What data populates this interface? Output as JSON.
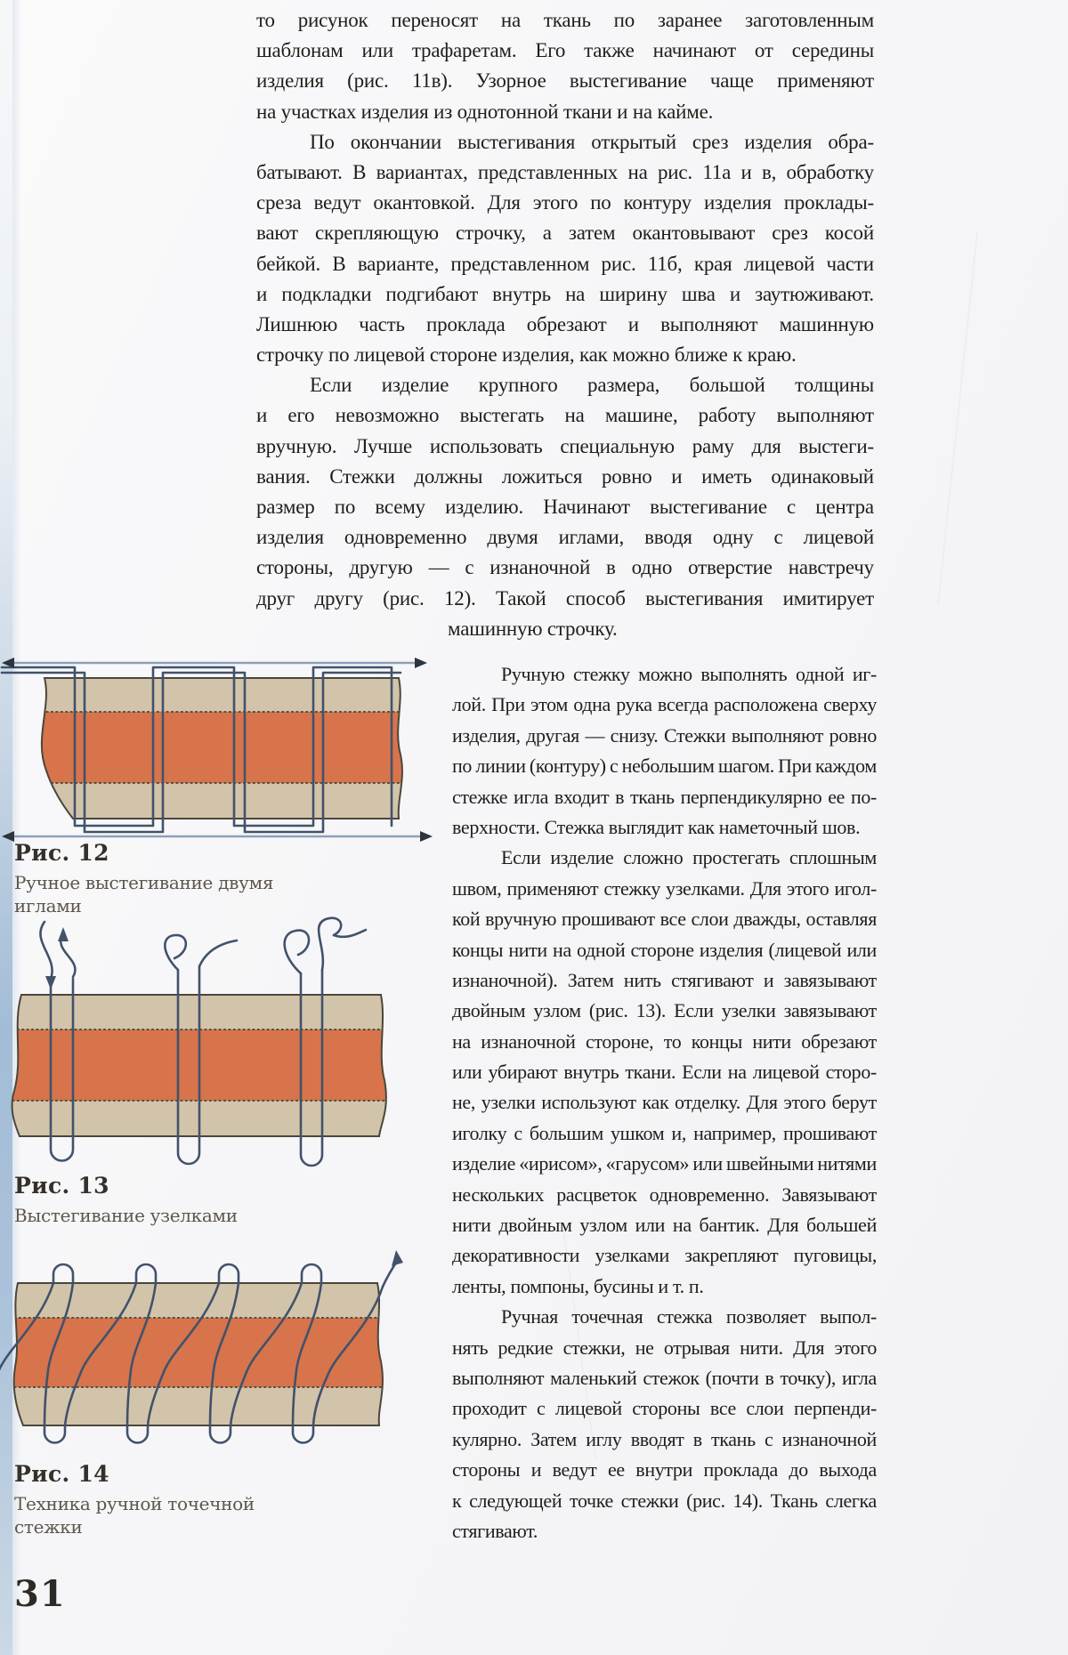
{
  "page": {
    "number": "31"
  },
  "colors": {
    "fabric_orange": "#d7744b",
    "fabric_tan": "#d2c4aa",
    "thread_line": "#42526b",
    "fabric_edge": "#4b463b",
    "arrow_line": "#8ba1ba",
    "arrow_head": "#2c3440",
    "text": "#211e1b",
    "caption_label": "#35302a",
    "caption_text": "#5c564d"
  },
  "figures": [
    {
      "label": "Рис. 12",
      "caption": "Ручное выстегивание двумя иглами"
    },
    {
      "label": "Рис. 13",
      "caption": "Выстегивание узелками"
    },
    {
      "label": "Рис. 14",
      "caption": "Техника ручной точечной стежки"
    }
  ],
  "text": {
    "column_top": {
      "lines": [
        {
          "t": "то рисунок переносят на ткань по заранее заготовленным",
          "j": 1
        },
        {
          "t": "шаблонам или трафаретам. Его также начинают от середины",
          "j": 1
        },
        {
          "t": "изделия (рис. 11в). Узорное выстегивание чаще применяют",
          "j": 1
        },
        {
          "t": "на участках изделия из однотонной ткани и на кайме.",
          "j": 0
        },
        {
          "t": "По окончании выстегивания открытый срез изделия обра-",
          "j": 1,
          "i": 60
        },
        {
          "t": "батывают. В вариантах, представленных на рис. 11а и в, обработку",
          "j": 1
        },
        {
          "t": "среза ведут окантовкой. Для этого по контуру изделия проклады-",
          "j": 1
        },
        {
          "t": "вают скрепляющую строчку, а затем окантовывают срез косой",
          "j": 1
        },
        {
          "t": "бейкой. В варианте, представленном рис. 11б, края лицевой части",
          "j": 1
        },
        {
          "t": "и подкладки подгибают внутрь на ширину шва и заутюживают.",
          "j": 1
        },
        {
          "t": "Лишнюю часть проклада обрезают и выполняют машинную",
          "j": 1
        },
        {
          "t": "строчку по лицевой стороне изделия, как можно ближе к краю.",
          "j": 0
        },
        {
          "t": "Если изделие крупного размера, большой толщины",
          "j": 1,
          "i": 60
        },
        {
          "t": "и его невозможно выстегать на машине, работу выполняют",
          "j": 1
        },
        {
          "t": "вручную. Лучше использовать специальную раму для выстеги-",
          "j": 1
        },
        {
          "t": "вания. Стежки должны ложиться ровно и иметь одинаковый",
          "j": 1
        },
        {
          "t": "размер по всему изделию. Начинают выстегивание с центра",
          "j": 1
        },
        {
          "t": "изделия одновременно двумя иглами, вводя одну с лицевой",
          "j": 1
        },
        {
          "t": "стороны, другую — с изнаночной в одно отверстие навстречу",
          "j": 1
        },
        {
          "t": "друг другу (рис. 12). Такой способ выстегивания имитирует",
          "j": 1
        },
        {
          "t": "машинную строчку.",
          "j": 0,
          "i": 215
        }
      ]
    },
    "column_right": {
      "lines": [
        {
          "t": "Ручную стежку можно выполнять одной иг-",
          "j": 1,
          "i": 55
        },
        {
          "t": "лой. При этом одна рука всегда расположена сверху",
          "j": 1
        },
        {
          "t": "изделия, другая — снизу. Стежки выполняют ровно",
          "j": 1
        },
        {
          "t": "по линии (контуру) с небольшим шагом. При каждом",
          "j": 1
        },
        {
          "t": "стежке игла входит в ткань перпендикулярно ее по-",
          "j": 1
        },
        {
          "t": "верхности. Стежка выглядит как наметочный шов.",
          "j": 0
        },
        {
          "t": "Если изделие сложно простегать сплошным",
          "j": 1,
          "i": 55
        },
        {
          "t": "швом, применяют стежку узелками. Для этого игол-",
          "j": 1
        },
        {
          "t": "кой вручную прошивают все слои дважды, оставляя",
          "j": 1
        },
        {
          "t": "концы нити на одной стороне изделия (лицевой или",
          "j": 1
        },
        {
          "t": "изнаночной). Затем нить стягивают и завязывают",
          "j": 1
        },
        {
          "t": "двойным узлом (рис. 13). Если узелки завязывают",
          "j": 1
        },
        {
          "t": "на изнаночной стороне, то концы нити обрезают",
          "j": 1
        },
        {
          "t": "или убирают внутрь ткани. Если на лицевой сторо-",
          "j": 1
        },
        {
          "t": "не, узелки используют как отделку. Для этого берут",
          "j": 1
        },
        {
          "t": "иголку с большим ушком и, например, прошивают",
          "j": 1
        },
        {
          "t": "изделие «ирисом», «гарусом» или швейными нитями",
          "j": 1
        },
        {
          "t": "нескольких расцветок одновременно. Завязывают",
          "j": 1
        },
        {
          "t": "нити двойным узлом или на бантик. Для большей",
          "j": 1
        },
        {
          "t": "декоративности узелками закрепляют пуговицы,",
          "j": 1
        },
        {
          "t": "ленты, помпоны, бусины и т. п.",
          "j": 0
        },
        {
          "t": "Ручная точечная стежка позволяет выпол-",
          "j": 1,
          "i": 55
        },
        {
          "t": "нять редкие стежки, не отрывая нити. Для этого",
          "j": 1
        },
        {
          "t": "выполняют маленький стежок (почти в точку), игла",
          "j": 1
        },
        {
          "t": "проходит с лицевой стороны все слои перпенди-",
          "j": 1
        },
        {
          "t": "кулярно. Затем иглу вводят в ткань с изнаночной",
          "j": 1
        },
        {
          "t": "стороны и ведут ее внутри проклада до выхода",
          "j": 1
        },
        {
          "t": "к следующей точке стежки (рис. 14). Ткань слегка",
          "j": 1
        },
        {
          "t": "стягивают.",
          "j": 0
        }
      ]
    }
  }
}
